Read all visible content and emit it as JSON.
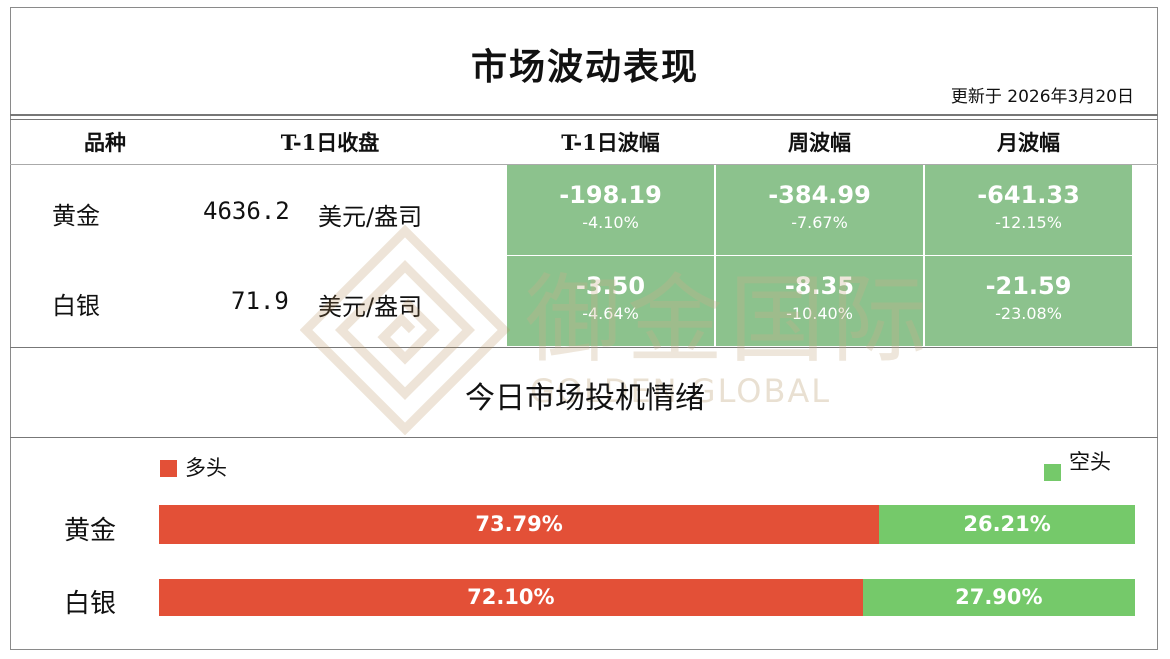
{
  "title": "市场波动表现",
  "updated": "更新于 2026年3月20日",
  "colors": {
    "long": "#e35037",
    "short": "#75c96a",
    "cell_green": "#8cc28d"
  },
  "table": {
    "headers": [
      "品种",
      "T-1日收盘",
      "T-1日波幅",
      "周波幅",
      "月波幅"
    ],
    "rows": [
      {
        "name": "黄金",
        "close": "4636.2",
        "unit": "美元/盎司",
        "t1": {
          "value": "-198.19",
          "pct": "-4.10%"
        },
        "week": {
          "value": "-384.99",
          "pct": "-7.67%"
        },
        "month": {
          "value": "-641.33",
          "pct": "-12.15%"
        }
      },
      {
        "name": "白银",
        "close": "71.9",
        "unit": "美元/盎司",
        "t1": {
          "value": "-3.50",
          "pct": "-4.64%"
        },
        "week": {
          "value": "-8.35",
          "pct": "-10.40%"
        },
        "month": {
          "value": "-21.59",
          "pct": "-23.08%"
        }
      }
    ]
  },
  "watermark": {
    "name": "御金国际",
    "sub": "GOLDEN GLOBAL"
  },
  "sentiment": {
    "title": "今日市场投机情绪",
    "legend_long": "多头",
    "legend_short": "空头",
    "rows": [
      {
        "name": "黄金",
        "long_pct": 73.79,
        "long_label": "73.79%",
        "short_label": "26.21%"
      },
      {
        "name": "白银",
        "long_pct": 72.1,
        "long_label": "72.10%",
        "short_label": "27.90%"
      }
    ]
  }
}
